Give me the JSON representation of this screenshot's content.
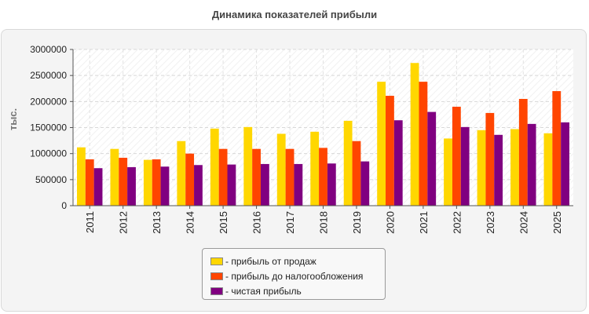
{
  "chart_data": {
    "type": "bar",
    "title": "Динамика показателей прибыли",
    "ylabel": "тыс.",
    "xlabel": "",
    "ylim": [
      0,
      3000000
    ],
    "yticks": [
      0,
      500000,
      1000000,
      1500000,
      2000000,
      2500000,
      3000000
    ],
    "grid": true,
    "legend_position": "bottom-center",
    "categories": [
      "2011",
      "2012",
      "2013",
      "2014",
      "2015",
      "2016",
      "2017",
      "2018",
      "2019",
      "2020",
      "2021",
      "2022",
      "2023",
      "2024",
      "2025"
    ],
    "series": [
      {
        "name": "- прибыль от продаж",
        "color": "#ffd700",
        "values": [
          1120000,
          1090000,
          880000,
          1240000,
          1480000,
          1510000,
          1380000,
          1420000,
          1630000,
          2380000,
          2740000,
          1290000,
          1450000,
          1470000,
          1390000
        ]
      },
      {
        "name": "- прибыль до налогообложения",
        "color": "#ff4500",
        "values": [
          890000,
          920000,
          890000,
          1000000,
          1090000,
          1090000,
          1090000,
          1110000,
          1240000,
          2110000,
          2380000,
          1900000,
          1780000,
          2050000,
          2200000
        ]
      },
      {
        "name": "- чистая прибыль",
        "color": "#800080",
        "values": [
          720000,
          740000,
          750000,
          780000,
          790000,
          800000,
          800000,
          810000,
          850000,
          1640000,
          1800000,
          1510000,
          1360000,
          1570000,
          1600000
        ]
      }
    ]
  }
}
